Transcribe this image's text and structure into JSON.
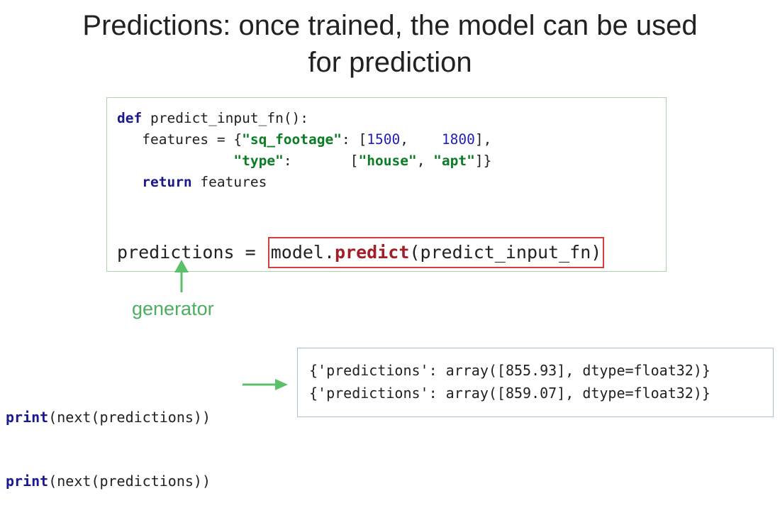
{
  "title": {
    "line1": "Predictions: once trained, the model can be used",
    "line2": "for prediction"
  },
  "code": {
    "def_kw": "def",
    "fn_signature": " predict_input_fn():",
    "features_lhs": "   features = {",
    "key_sqft": "\"sq_footage\"",
    "sqft_sep": ": [",
    "sqft_v1": "1500",
    "sqft_gap": ",    ",
    "sqft_v2": "1800",
    "sqft_end": "],",
    "type_indent": "              ",
    "key_type": "\"type\"",
    "type_sep": ":       [",
    "type_v1": "\"house\"",
    "type_comma": ", ",
    "type_v2": "\"apt\"",
    "type_end": "]}",
    "return_indent": "   ",
    "return_kw": "return",
    "return_rest": " features"
  },
  "prediction_line": {
    "lhs": "predictions = ",
    "model_part": "model.",
    "method": "predict",
    "args": "(predict_input_fn)"
  },
  "annotation": {
    "generator_label": "generator"
  },
  "print_calls": [
    {
      "kw": "print",
      "rest": "(next(predictions))"
    },
    {
      "kw": "print",
      "rest": "(next(predictions))"
    }
  ],
  "outputs": [
    "{'predictions': array([855.93], dtype=float32)}",
    "{'predictions': array([859.07], dtype=float32)}"
  ],
  "colors": {
    "green_arrow": "#5cbf6a",
    "highlight_border": "#d33f3f",
    "code_box_border": "#a8d4aa",
    "output_box_border": "#a9bde0"
  }
}
